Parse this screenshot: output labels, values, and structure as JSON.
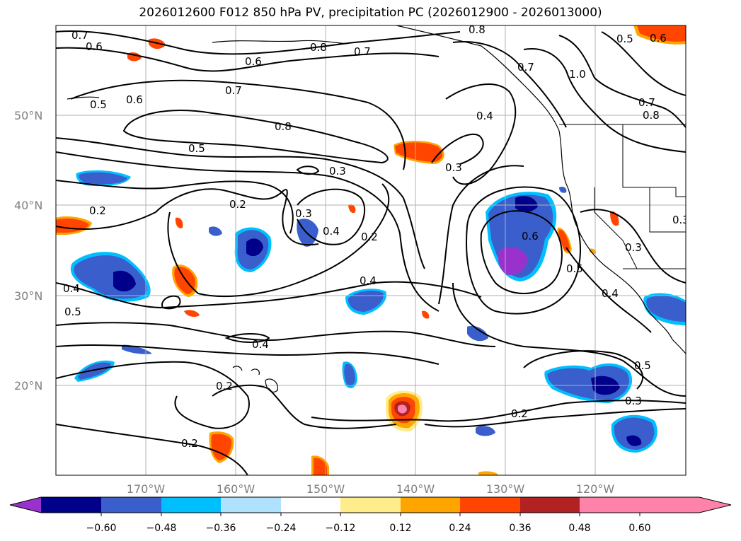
{
  "title": "2026012600 F012 850 hPa PV, precipitation PC (2026012900 - 2026013000)",
  "map": {
    "lat_labels": [
      "50°N",
      "40°N",
      "30°N",
      "20°N"
    ],
    "lon_labels": [
      "170°W",
      "160°W",
      "150°W",
      "140°W",
      "130°W",
      "120°W"
    ],
    "contour_labels": [
      "0.7",
      "0.6",
      "0.5",
      "0.6",
      "0.7",
      "0.8",
      "0.5",
      "0.3",
      "0.2",
      "0.2",
      "0.3",
      "0.4",
      "0.2",
      "0.4",
      "0.4",
      "0.5",
      "0.4",
      "0.2",
      "0.2",
      "0.4",
      "0.3",
      "0.6",
      "0.5",
      "0.4",
      "0.3",
      "0.5",
      "0.3",
      "0.2",
      "0.8",
      "0.7",
      "0.7",
      "1.0",
      "0.7",
      "0.8",
      "0.5",
      "0.6",
      "0.8",
      "0.6",
      "0.3"
    ]
  },
  "colorbar": {
    "ticks": [
      "−0.60",
      "−0.48",
      "−0.36",
      "−0.24",
      "−0.12",
      "0.12",
      "0.24",
      "0.36",
      "0.48",
      "0.60"
    ],
    "colors": [
      "#9932cc",
      "#00008b",
      "#3a5fcd",
      "#00bfff",
      "#b0e2ff",
      "#ffffff",
      "#ffec8b",
      "#ffa500",
      "#ff4500",
      "#b22222",
      "#ff82ab"
    ]
  }
}
